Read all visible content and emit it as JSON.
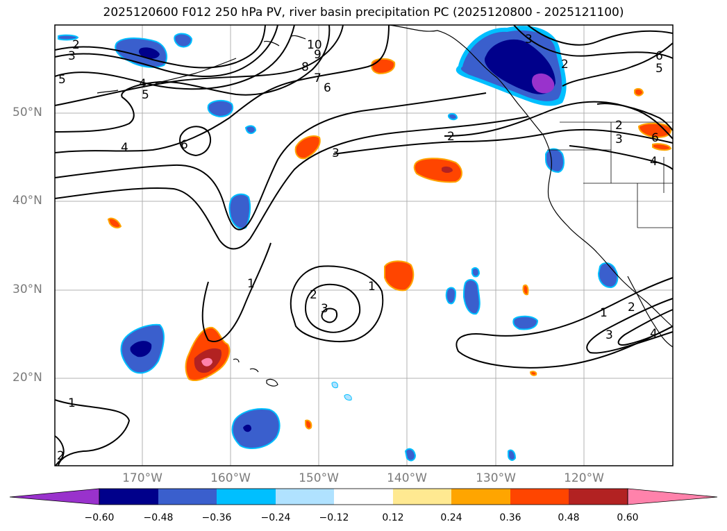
{
  "title": "2025120600 F012 250 hPa PV, river basin precipitation PC (2025120800 - 2025121100)",
  "lat_labels": [
    "50°N",
    "40°N",
    "30°N",
    "20°N"
  ],
  "lon_labels": [
    "170°W",
    "160°W",
    "150°W",
    "140°W",
    "130°W",
    "120°W"
  ],
  "contour_labels": [
    "2",
    "3",
    "5",
    "4",
    "5",
    "10",
    "9",
    "8",
    "7",
    "6",
    "6",
    "4",
    "3",
    "2",
    "1",
    "2",
    "3",
    "1",
    "3",
    "2",
    "6",
    "5",
    "2",
    "3",
    "6",
    "4",
    "1",
    "2",
    "3",
    "4",
    "1",
    "2"
  ],
  "colorbar": {
    "tick_labels": [
      "−0.60",
      "−0.48",
      "−0.36",
      "−0.24",
      "−0.12",
      "0.12",
      "0.24",
      "0.36",
      "0.48",
      "0.60"
    ],
    "colors": [
      "#9932cc",
      "#00008b",
      "#3a5fcd",
      "#00bfff",
      "#b0e2ff",
      "#ffffff",
      "#ffe991",
      "#ffa500",
      "#ff4500",
      "#b22222",
      "#ff82ab"
    ]
  },
  "colors": {
    "neg_strong": "#00008b",
    "neg_mid": "#3a5fcd",
    "neg_light": "#00bfff",
    "neg_pale": "#b0e2ff",
    "neg_extreme": "#9932cc",
    "pos_pale": "#ffe991",
    "pos_light": "#ffa500",
    "pos_mid": "#ff4500",
    "pos_strong": "#b22222",
    "pos_extreme": "#ff82ab"
  }
}
